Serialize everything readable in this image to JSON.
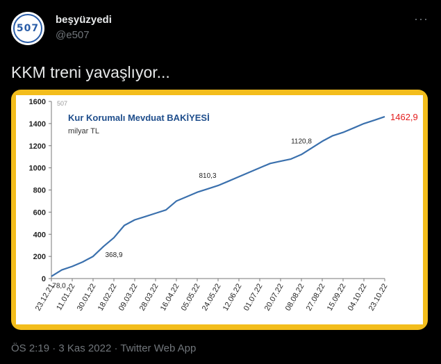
{
  "user": {
    "display_name": "beşyüzyedi",
    "handle": "@e507",
    "avatar_text": "507"
  },
  "more_icon": "more-dots-icon",
  "tweet": {
    "text": "KKM treni yavaşlıyor..."
  },
  "footer": {
    "time": "ÖS 2:19",
    "separator": "·",
    "date": "3 Kas 2022",
    "source": "Twitter Web App"
  },
  "colors": {
    "frame": "#f3bd1c",
    "line": "#3a70ad",
    "title": "#1f4e8c",
    "last_value": "#e31b1b"
  },
  "chart_data": {
    "type": "line",
    "title": "Kur Korumalı Mevduat BAKİYESİ",
    "subtitle": "milyar TL",
    "watermark": "507",
    "ylim": [
      0,
      1600
    ],
    "yticks": [
      "0",
      "200",
      "400",
      "600",
      "800",
      "1000",
      "1200",
      "1400",
      "1600"
    ],
    "x_labels": [
      "23.12.21",
      "11.01.22",
      "30.01.22",
      "18.02.22",
      "09.03.22",
      "28.03.22",
      "16.04.22",
      "05.05.22",
      "24.05.22",
      "12.06.22",
      "01.07.22",
      "20.07.22",
      "08.08.22",
      "27.08.22",
      "15.09.22",
      "04.10.22",
      "23.10.22"
    ],
    "series": [
      {
        "values": [
          20,
          78,
          110,
          150,
          200,
          290,
          368.9,
          480,
          530,
          560,
          590,
          620,
          700,
          740,
          780,
          810.3,
          840,
          880,
          920,
          960,
          1000,
          1040,
          1060,
          1080,
          1120.8,
          1180,
          1240,
          1290,
          1320,
          1360,
          1400,
          1430,
          1462.9
        ]
      }
    ],
    "annotations": [
      {
        "label": "78,0",
        "index": 1,
        "value": 78
      },
      {
        "label": "368,9",
        "index": 6,
        "value": 368.9
      },
      {
        "label": "810,3",
        "index": 15,
        "value": 810.3
      },
      {
        "label": "1120,8",
        "index": 24,
        "value": 1120.8
      }
    ],
    "last_label": "1462,9"
  }
}
